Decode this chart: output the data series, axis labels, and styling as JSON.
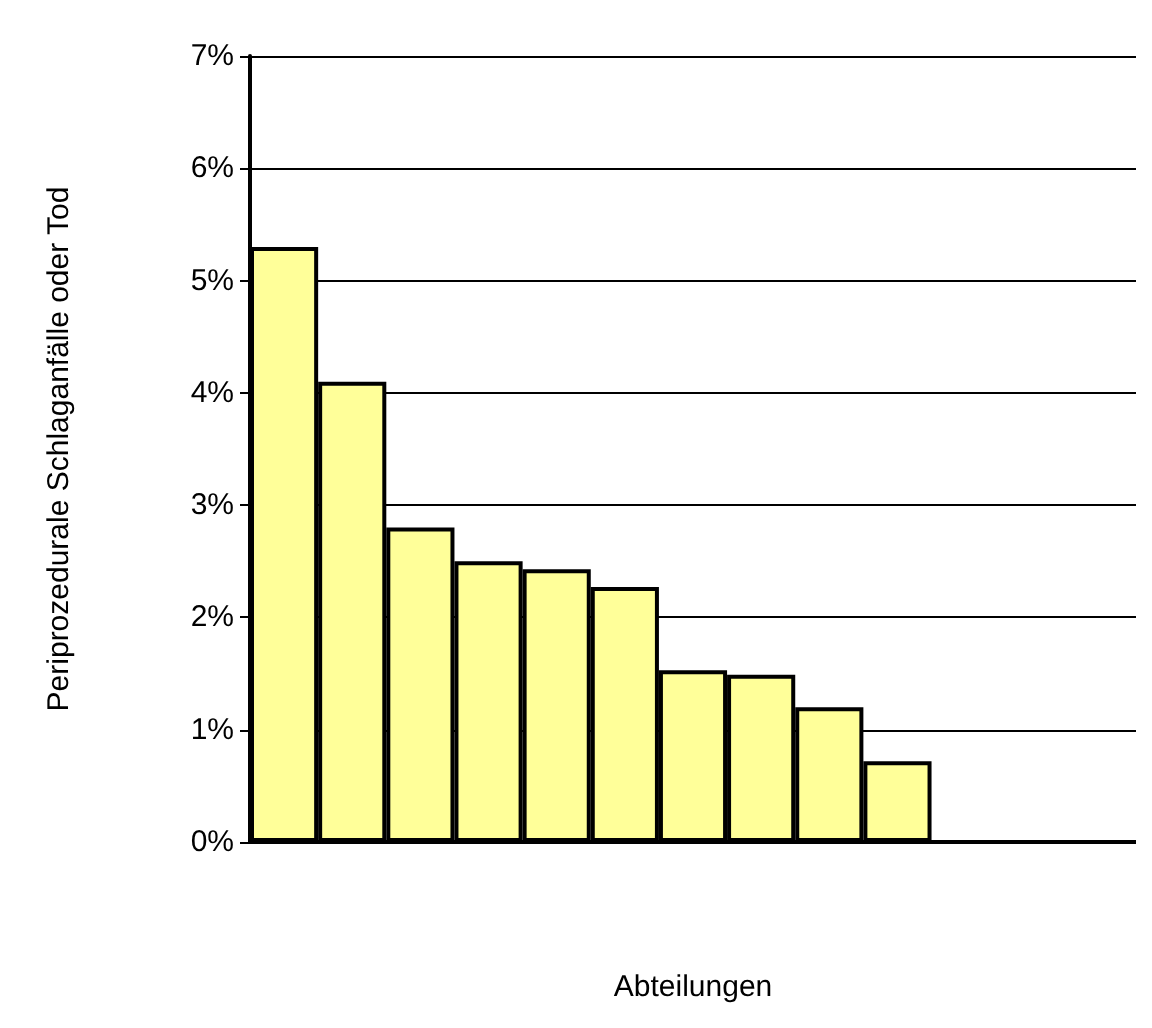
{
  "chart_data": {
    "type": "bar",
    "xlabel": "Abteilungen",
    "ylabel": "Periprozedurale Schlaganfälle oder Tod",
    "categories": [
      null,
      null,
      null,
      null,
      null,
      null,
      null,
      null,
      null,
      null,
      null,
      null,
      null
    ],
    "values": [
      5.3,
      4.1,
      2.8,
      2.5,
      2.43,
      2.27,
      1.53,
      1.49,
      1.2,
      0.72,
      null,
      null,
      null
    ],
    "color": "#ffff99",
    "ylim": [
      0,
      7
    ],
    "yticks": [
      {
        "value": 0,
        "label": "0%"
      },
      {
        "value": 1,
        "label": "1%"
      },
      {
        "value": 2,
        "label": "2%"
      },
      {
        "value": 3,
        "label": "3%"
      },
      {
        "value": 4,
        "label": "4%"
      },
      {
        "value": 5,
        "label": "5%"
      },
      {
        "value": 6,
        "label": "6%"
      },
      {
        "value": 7,
        "label": "7%"
      }
    ],
    "grid": "y"
  }
}
